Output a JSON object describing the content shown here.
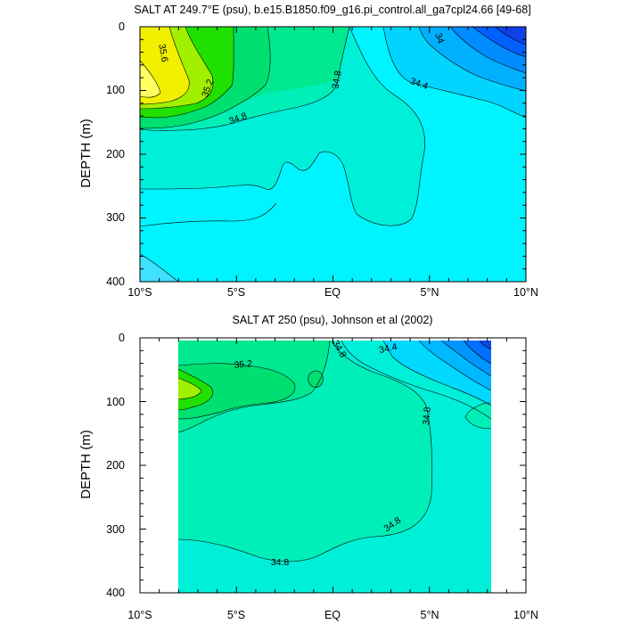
{
  "chart_data": [
    {
      "type": "contour",
      "title": "SALT AT 249.7°E (psu), b.e15.B1850.f09_g16.pi_control.all_ga7cpl24.66 [49-68]",
      "ylabel": "DEPTH (m)",
      "xlim": [
        -10,
        10
      ],
      "ylim": [
        0,
        400
      ],
      "y_inverted": true,
      "xticklabels": [
        "10°S",
        "5°S",
        "EQ",
        "5°N",
        "10°N"
      ],
      "yticklabels": [
        "0",
        "100",
        "200",
        "300",
        "400"
      ],
      "contour_labels": [
        "35.6",
        "35.2",
        "34.8",
        "34.8",
        "34.4",
        "34"
      ]
    },
    {
      "type": "contour",
      "title": "SALT AT 250 (psu), Johnson et al (2002)",
      "ylabel": "DEPTH (m)",
      "xlim": [
        -10,
        10
      ],
      "ylim": [
        0,
        400
      ],
      "y_inverted": true,
      "data_xrange": [
        -8,
        8
      ],
      "xticklabels": [
        "10°S",
        "5°S",
        "EQ",
        "5°N",
        "10°N"
      ],
      "yticklabels": [
        "0",
        "100",
        "200",
        "300",
        "400"
      ],
      "contour_labels": [
        "35.2",
        "34.8",
        "34.4",
        "34.8",
        "34.8",
        "34.8"
      ]
    }
  ],
  "colors": {
    "c34_6": "#00efd8",
    "c34_8": "#00eeb8",
    "c34_4": "#00f4ff",
    "c34_2": "#00d4ff",
    "c34_0": "#00b0ff",
    "c33_8": "#008cff",
    "c33_6": "#0060ff",
    "c33_4": "#1040e8",
    "c35_0": "#00e890",
    "c35_2": "#00e070",
    "c35_4": "#20e000",
    "c35_6": "#a0f000",
    "c35_8": "#f0f000",
    "c36_0": "#ffff60"
  }
}
